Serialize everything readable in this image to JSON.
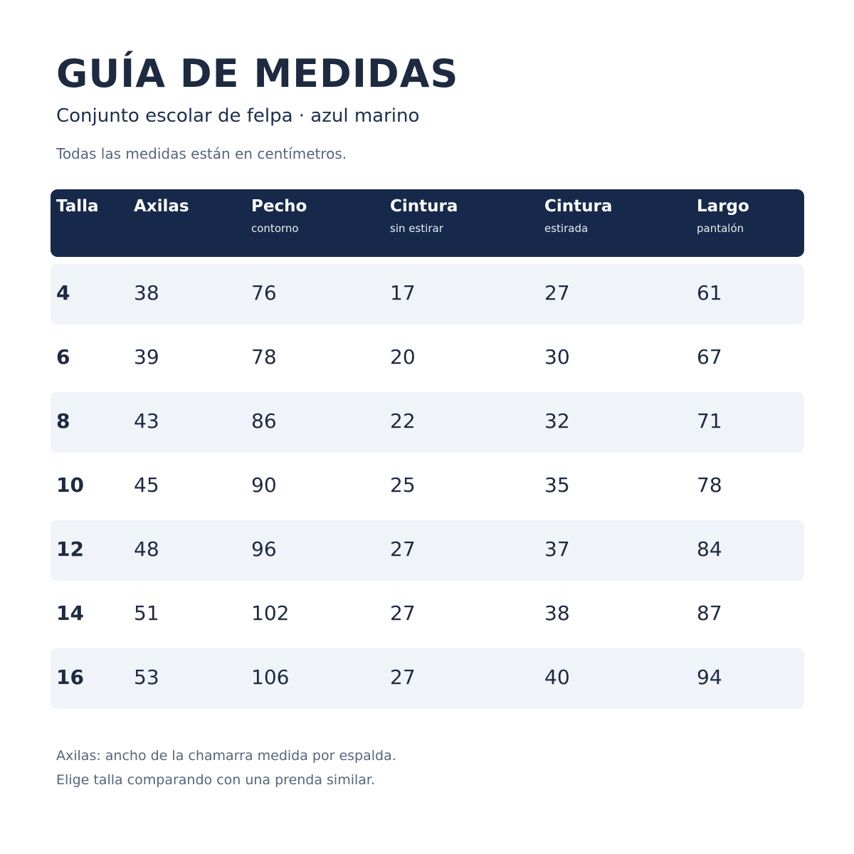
{
  "title": "GUÍA DE MEDIDAS",
  "subtitle": "Conjunto escolar de felpa · azul marino",
  "units_note": "Todas las medidas están en centímetros.",
  "colors": {
    "header_bg": "#17294b",
    "row_shade": "#f0f4f9",
    "text_dark": "#1d2a40",
    "text_muted": "#56657d"
  },
  "table": {
    "columns": [
      {
        "label": "Talla",
        "sub": ""
      },
      {
        "label": "Axilas",
        "sub": ""
      },
      {
        "label": "Pecho",
        "sub": "contorno"
      },
      {
        "label": "Cintura",
        "sub": "sin estirar"
      },
      {
        "label": "Cintura",
        "sub": "estirada"
      },
      {
        "label": "Largo",
        "sub": "pantalón"
      }
    ],
    "rows": [
      [
        "4",
        "38",
        "76",
        "17",
        "27",
        "61"
      ],
      [
        "6",
        "39",
        "78",
        "20",
        "30",
        "67"
      ],
      [
        "8",
        "43",
        "86",
        "22",
        "32",
        "71"
      ],
      [
        "10",
        "45",
        "90",
        "25",
        "35",
        "78"
      ],
      [
        "12",
        "48",
        "96",
        "27",
        "37",
        "84"
      ],
      [
        "14",
        "51",
        "102",
        "27",
        "38",
        "87"
      ],
      [
        "16",
        "53",
        "106",
        "27",
        "40",
        "94"
      ]
    ]
  },
  "footnotes": [
    "Axilas: ancho de la chamarra medida por espalda.",
    "Elige talla comparando con una prenda similar."
  ]
}
